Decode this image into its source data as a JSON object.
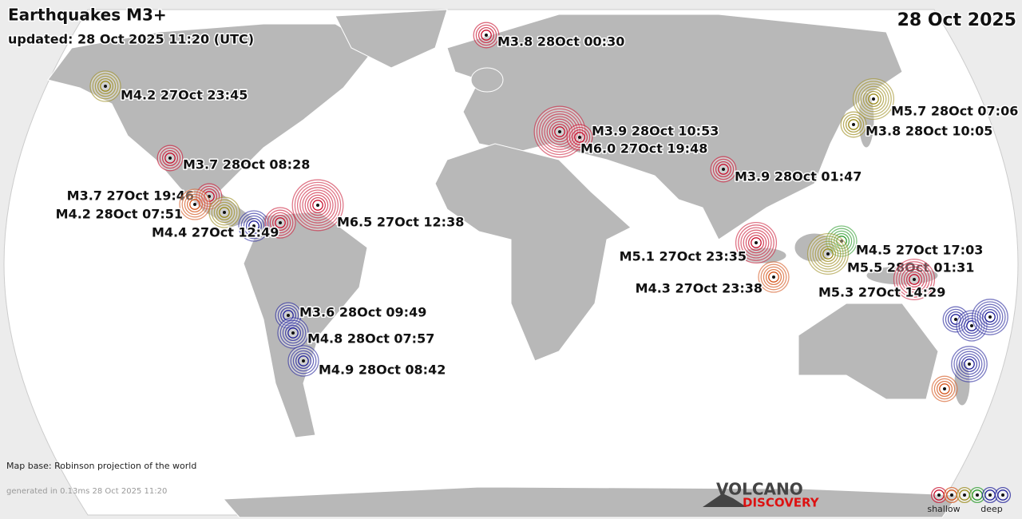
{
  "header": {
    "title": "Earthquakes M3+",
    "updated": "updated: 28 Oct 2025 11:20 (UTC)",
    "date": "28 Oct 2025"
  },
  "quakes": [
    {
      "label": "M3.8 28Oct 00:30"
    },
    {
      "label": "M4.2 27Oct 23:45"
    },
    {
      "label": "M5.7 28Oct 07:06"
    },
    {
      "label": "M3.9 28Oct 10:53"
    },
    {
      "label": "M3.8 28Oct 10:05"
    },
    {
      "label": "M6.0 27Oct 19:48"
    },
    {
      "label": "M3.7 28Oct 08:28"
    },
    {
      "label": "M3.9 28Oct 01:47"
    },
    {
      "label": "M3.7 27Oct 19:46"
    },
    {
      "label": "M4.2 28Oct 07:51"
    },
    {
      "label": "M4.4 27Oct 12:49"
    },
    {
      "label": "M6.5 27Oct 12:38"
    },
    {
      "label": "M4.5 27Oct 17:03"
    },
    {
      "label": "M5.1 27Oct 23:35"
    },
    {
      "label": "M5.5 28Oct 01:31"
    },
    {
      "label": "M4.3 27Oct 23:38"
    },
    {
      "label": "M5.3 27Oct 14:29"
    },
    {
      "label": "M3.6 28Oct 09:49"
    },
    {
      "label": "M4.8 28Oct 07:57"
    },
    {
      "label": "M4.9 28Oct 08:42"
    }
  ],
  "footer": {
    "map_base": "Map base: Robinson projection of the world",
    "generated": "generated in 0.13ms 28 Oct 2025 11:20",
    "logo_top": "VOLCANO",
    "logo_bottom": "DISCOVERY",
    "legend_shallow": "shallow",
    "legend_deep": "deep"
  }
}
